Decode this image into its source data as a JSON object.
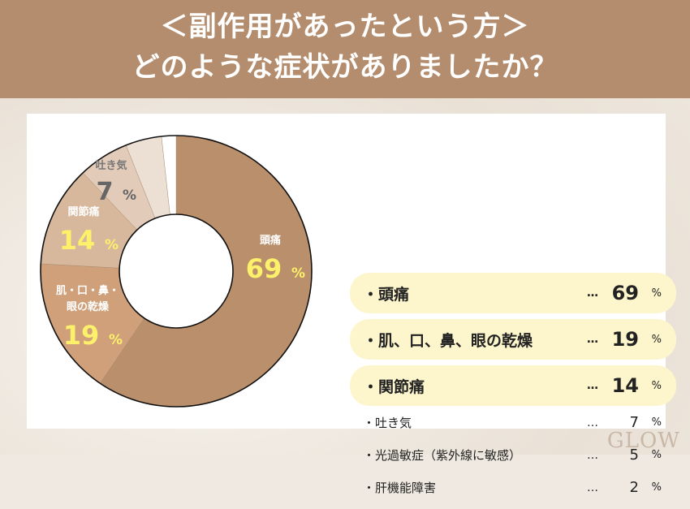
{
  "header": {
    "line1": "＜副作用があったという方＞",
    "line2": "どのような症状がありましたか？"
  },
  "chart_data": {
    "type": "pie",
    "donut": true,
    "categories": [
      "頭痛",
      "肌、口、鼻、眼の乾燥",
      "関節痛",
      "吐き気",
      "光過敏症（紫外線に敏感）",
      "肝機能障害"
    ],
    "values": [
      69,
      19,
      14,
      7,
      5,
      2
    ],
    "unit": "%",
    "slice_labels": [
      {
        "lines": [
          "頭痛"
        ],
        "value": "69",
        "unit": "%"
      },
      {
        "lines": [
          "肌・口・鼻・",
          "眼の乾燥"
        ],
        "value": "19",
        "unit": "%"
      },
      {
        "lines": [
          "関節痛"
        ],
        "value": "14",
        "unit": "%"
      },
      {
        "lines": [
          "吐き気"
        ],
        "value": "7",
        "unit": "%"
      }
    ],
    "colors": [
      "#ba8f6b",
      "#cfa07a",
      "#d8b89c",
      "#e2cbb8",
      "#ecdfd4",
      "#ffffff"
    ],
    "label_color": "#fdf06a"
  },
  "list": [
    {
      "label": "・頭痛",
      "dots": "…",
      "value": "69",
      "unit": "%",
      "highlight": true
    },
    {
      "label": "・肌、口、鼻、眼の乾燥",
      "dots": "…",
      "value": "19",
      "unit": "%",
      "highlight": true
    },
    {
      "label": "・関節痛",
      "dots": "…",
      "value": "14",
      "unit": "%",
      "highlight": true
    },
    {
      "label": "・吐き気",
      "dots": "…",
      "value": "7",
      "unit": "%",
      "highlight": false
    },
    {
      "label": "・光過敏症（紫外線に敏感）",
      "dots": "…",
      "value": "5",
      "unit": "%",
      "highlight": false
    },
    {
      "label": "・肝機能障害",
      "dots": "…",
      "value": "2",
      "unit": "%",
      "highlight": false
    }
  ],
  "logo": "GLOW"
}
